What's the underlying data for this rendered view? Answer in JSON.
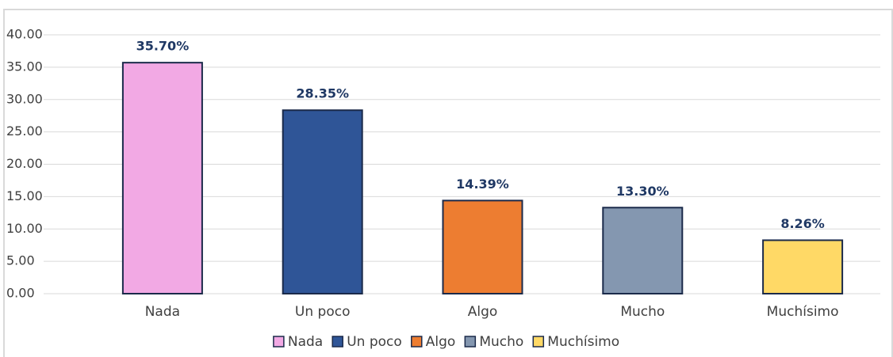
{
  "chart_data": {
    "type": "bar",
    "categories": [
      "Nada",
      "Un poco",
      "Algo",
      "Mucho",
      "Muchísimo"
    ],
    "values": [
      35.7,
      28.35,
      14.39,
      13.3,
      8.26
    ],
    "value_labels": [
      "35.70%",
      "28.35%",
      "14.39%",
      "13.30%",
      "8.26%"
    ],
    "colors": [
      "#f2a9e4",
      "#2f5597",
      "#ed7d31",
      "#8497b0",
      "#ffd966"
    ],
    "ylim": [
      0,
      40
    ],
    "yticks": [
      {
        "value": 0,
        "label": "0.00"
      },
      {
        "value": 5,
        "label": "5.00"
      },
      {
        "value": 10,
        "label": "10.00"
      },
      {
        "value": 15,
        "label": "15.00"
      },
      {
        "value": 20,
        "label": "20.00"
      },
      {
        "value": 25,
        "label": "25.00"
      },
      {
        "value": 30,
        "label": "30.00"
      },
      {
        "value": 35,
        "label": "35.00"
      },
      {
        "value": 40,
        "label": "40.00"
      }
    ],
    "grid": true,
    "legend": "bottom"
  }
}
